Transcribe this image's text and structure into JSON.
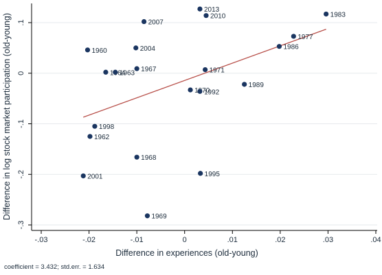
{
  "chart_data": {
    "type": "scatter",
    "title": "",
    "xlabel": "Difference in experiences (old-young)",
    "ylabel": "Difference in log stock market participation (old-young)",
    "xlim": [
      -0.03,
      0.04
    ],
    "ylim": [
      -0.3,
      0.1
    ],
    "x_ticks": [
      -0.03,
      -0.02,
      -0.01,
      0,
      0.01,
      0.02,
      0.03,
      0.04
    ],
    "x_tick_labels": [
      "-.03",
      "-.02",
      "-.01",
      "0",
      ".01",
      ".02",
      ".03",
      ".04"
    ],
    "y_ticks": [
      -0.3,
      -0.2,
      -0.1,
      0,
      0.1
    ],
    "y_tick_labels": [
      "-.3",
      "-.2",
      "-.1",
      "0",
      ".1"
    ],
    "grid": "horizontal",
    "legend": "none",
    "marker_color": "#1a3560",
    "fit_color": "#b8504a",
    "points": [
      {
        "label": "2013",
        "x": 0.0032,
        "y": 0.127
      },
      {
        "label": "2010",
        "x": 0.0045,
        "y": 0.114
      },
      {
        "label": "1983",
        "x": 0.0296,
        "y": 0.117
      },
      {
        "label": "2007",
        "x": -0.0085,
        "y": 0.102
      },
      {
        "label": "1977",
        "x": 0.0228,
        "y": 0.073
      },
      {
        "label": "1986",
        "x": 0.0198,
        "y": 0.053
      },
      {
        "label": "1960",
        "x": -0.0203,
        "y": 0.046
      },
      {
        "label": "2004",
        "x": -0.0102,
        "y": 0.05
      },
      {
        "label": "1971",
        "x": 0.0043,
        "y": 0.007
      },
      {
        "label": "1967",
        "x": -0.01,
        "y": 0.009
      },
      {
        "label": "1964",
        "x": -0.0165,
        "y": 0.002
      },
      {
        "label": "1963",
        "x": -0.0145,
        "y": 0.002
      },
      {
        "label": "1989",
        "x": 0.0125,
        "y": -0.022
      },
      {
        "label": "1970",
        "x": 0.0012,
        "y": -0.033
      },
      {
        "label": "1992",
        "x": 0.0032,
        "y": -0.036
      },
      {
        "label": "1998",
        "x": -0.0188,
        "y": -0.105
      },
      {
        "label": "1962",
        "x": -0.0198,
        "y": -0.125
      },
      {
        "label": "1968",
        "x": -0.01,
        "y": -0.166
      },
      {
        "label": "1995",
        "x": 0.0033,
        "y": -0.198
      },
      {
        "label": "2001",
        "x": -0.0212,
        "y": -0.203
      },
      {
        "label": "1969",
        "x": -0.0078,
        "y": -0.282
      }
    ],
    "fit_line": {
      "x": [
        -0.0212,
        0.0296
      ],
      "y": [
        -0.087,
        0.087
      ]
    },
    "note": "coefficient = 3.432; std.err. = 1.634"
  }
}
